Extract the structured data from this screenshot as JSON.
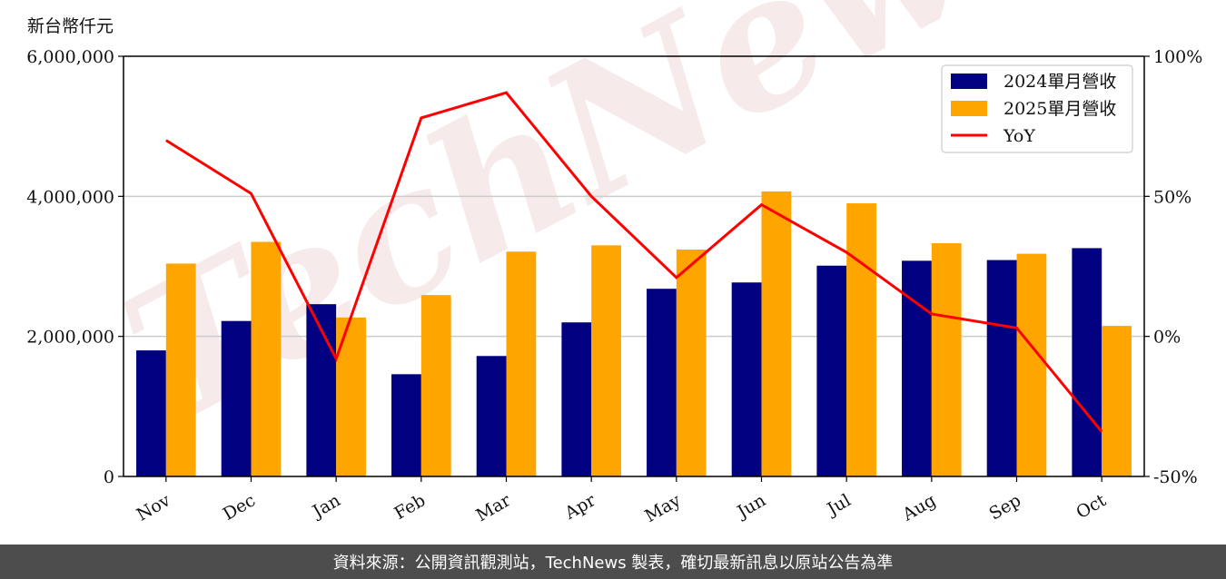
{
  "unit_label": "新台幣仟元",
  "footer_text": "資料來源：公開資訊觀測站，TechNews 製表，確切最新訊息以原站公告為準",
  "watermark_text": "TechNews",
  "chart_data": {
    "type": "bar",
    "categories": [
      "Nov",
      "Dec",
      "Jan",
      "Feb",
      "Mar",
      "Apr",
      "May",
      "Jun",
      "Jul",
      "Aug",
      "Sep",
      "Oct"
    ],
    "series": [
      {
        "name": "2024單月營收",
        "kind": "bar",
        "axis": "left",
        "color": "#000080",
        "values": [
          1800000,
          2220000,
          2460000,
          1460000,
          1720000,
          2200000,
          2680000,
          2770000,
          3010000,
          3080000,
          3090000,
          3260000
        ]
      },
      {
        "name": "2025單月營收",
        "kind": "bar",
        "axis": "left",
        "color": "#ffa500",
        "values": [
          3040000,
          3350000,
          2270000,
          2590000,
          3210000,
          3300000,
          3240000,
          4070000,
          3900000,
          3330000,
          3180000,
          2150000
        ]
      },
      {
        "name": "YoY",
        "kind": "line",
        "axis": "right",
        "color": "#ff0000",
        "values": [
          70,
          51,
          -8,
          78,
          87,
          50,
          21,
          47,
          30,
          8,
          3,
          -34
        ]
      }
    ],
    "y_left": {
      "ylim": [
        0,
        6000000
      ],
      "ticks": [
        0,
        2000000,
        4000000,
        6000000
      ],
      "tick_labels": [
        "0",
        "2,000,000",
        "4,000,000",
        "6,000,000"
      ]
    },
    "y_right": {
      "ylim": [
        -50,
        100
      ],
      "ticks": [
        -50,
        0,
        50,
        100
      ],
      "tick_labels": [
        "-50%",
        "0%",
        "50%",
        "100%"
      ]
    },
    "grid": "horizontal",
    "legend_position": "top-right",
    "title": "",
    "xlabel": "",
    "ylabel": ""
  }
}
